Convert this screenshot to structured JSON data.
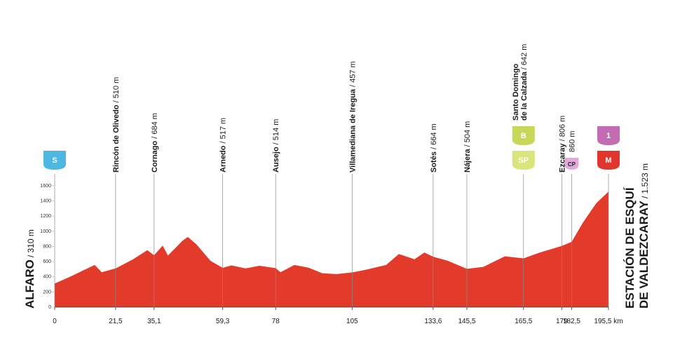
{
  "chart_data": {
    "type": "area",
    "color": "#e23a2b",
    "x": [
      0,
      5.4,
      10.4,
      14.1,
      16.6,
      21.5,
      27.7,
      32.7,
      35.1,
      38.1,
      40,
      45,
      47,
      50,
      55,
      59.3,
      62.4,
      67.3,
      72.3,
      78,
      79.7,
      84.6,
      89.6,
      94.5,
      99.5,
      105,
      109.5,
      117,
      121.5,
      127,
      130.5,
      133.6,
      138.8,
      145.5,
      151.3,
      158.9,
      165.5,
      171.3,
      179,
      182.5,
      186.4,
      191.2,
      195.5
    ],
    "values": [
      310,
      400,
      490,
      555,
      460,
      510,
      630,
      750,
      684,
      810,
      680,
      870,
      925,
      830,
      610,
      517,
      550,
      510,
      545,
      514,
      460,
      555,
      520,
      445,
      435,
      457,
      490,
      555,
      700,
      630,
      720,
      664,
      610,
      504,
      530,
      670,
      642,
      720,
      806,
      860,
      1110,
      1370,
      1523
    ],
    "xlim": [
      0,
      195.5
    ],
    "ylim": [
      0,
      1700
    ],
    "yticks": [
      0,
      200,
      400,
      600,
      800,
      1000,
      1200,
      1400,
      1600
    ],
    "xticks": [
      0,
      {
        "value": 21.5,
        "label": "21,5"
      },
      {
        "value": 35.1,
        "label": "35,1"
      },
      {
        "value": 59.3,
        "label": "59,3"
      },
      78,
      105,
      {
        "value": 133.6,
        "label": "133,6"
      },
      {
        "value": 145.5,
        "label": "145,5"
      },
      {
        "value": 165.5,
        "label": "165,5"
      },
      179,
      {
        "value": 182.5,
        "label": "182,5"
      },
      {
        "value": 195.5,
        "label": "195,5 km"
      }
    ],
    "start": {
      "name": [
        "ALFARO"
      ],
      "altitude": "/ 310 m",
      "badges": [
        {
          "label": "S",
          "color": "#4db6e2"
        }
      ]
    },
    "finish": {
      "name": [
        "ESTACIÓN DE ESQUÍ",
        "DE VALDEZCARAY"
      ],
      "altitude": "/ 1.523 m",
      "badges": [
        {
          "label": "1",
          "color": "#c46cb3"
        },
        {
          "label": "M",
          "color": "#e2352b"
        }
      ]
    },
    "waypoints": [
      {
        "name": [
          "Rincón de Olivedo"
        ],
        "altitude": "/ 510 m",
        "km": 21.5,
        "badges": []
      },
      {
        "name": [
          "Cornago"
        ],
        "altitude": "/ 684 m",
        "km": 35.1,
        "badges": []
      },
      {
        "name": [
          "Arnedo"
        ],
        "altitude": "/ 517 m",
        "km": 59.3,
        "badges": []
      },
      {
        "name": [
          "Ausejo"
        ],
        "altitude": "/ 514 m",
        "km": 78,
        "badges": []
      },
      {
        "name": [
          "Villamediana de Iregua"
        ],
        "altitude": "/ 457 m",
        "km": 105,
        "badges": []
      },
      {
        "name": [
          "Sotés"
        ],
        "altitude": "/ 664 m",
        "km": 133.6,
        "badges": []
      },
      {
        "name": [
          "Nájera"
        ],
        "altitude": "/ 504 m",
        "km": 145.5,
        "badges": []
      },
      {
        "name": [
          "Santo Domingo",
          "de la Calzada"
        ],
        "altitude": "/ 642 m",
        "km": 165.5,
        "badges": [
          {
            "label": "B",
            "color": "#c8d65a"
          },
          {
            "label": "SP",
            "color": "#d9e57a"
          }
        ]
      },
      {
        "name": [
          "Ezcaray"
        ],
        "altitude": "/ 806 m",
        "km": 179,
        "badges": []
      },
      {
        "name": [],
        "altitude": "860 m",
        "km": 182.5,
        "badges": [
          {
            "label": "CP",
            "color": "#e3a8dd"
          }
        ]
      }
    ]
  }
}
